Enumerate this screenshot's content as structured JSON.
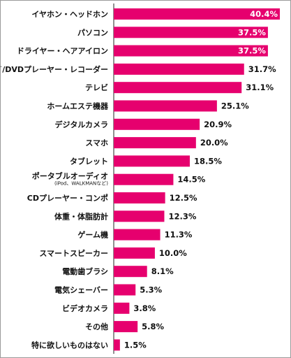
{
  "chart_data": {
    "type": "bar",
    "orientation": "horizontal",
    "title": "",
    "xlabel": "",
    "ylabel": "",
    "xlim": [
      0,
      40.4
    ],
    "grid": false,
    "legend": "none",
    "bar_color": "#e6006e",
    "value_label_inside_color": "#ffffff",
    "value_label_outside_color": "#111111",
    "categories": [
      "イヤホン・ヘッドホン",
      "パソコン",
      "ドライヤー・ヘアアイロン",
      "ブルーレイ/DVDプレーヤー・レコーダー",
      "テレビ",
      "ホームエステ機器",
      "デジタルカメラ",
      "スマホ",
      "タブレット",
      "ポータブルオーディオ",
      "CDプレーヤー・コンポ",
      "体重・体脂肪計",
      "ゲーム機",
      "スマートスピーカー",
      "電動歯ブラシ",
      "電気シェーバー",
      "ビデオカメラ",
      "その他",
      "特に欲しいものはない"
    ],
    "category_sublabels": {
      "9": "(iPod、WALKMANなど)"
    },
    "values": [
      40.4,
      37.5,
      37.5,
      31.7,
      31.1,
      25.1,
      20.9,
      20.0,
      18.5,
      14.5,
      12.5,
      12.3,
      11.3,
      10.0,
      8.1,
      5.3,
      3.8,
      5.8,
      1.5
    ],
    "value_labels": [
      "40.4%",
      "37.5%",
      "37.5%",
      "31.7%",
      "31.1%",
      "25.1%",
      "20.9%",
      "20.0%",
      "18.5%",
      "14.5%",
      "12.5%",
      "12.3%",
      "11.3%",
      "10.0%",
      "8.1%",
      "5.3%",
      "3.8%",
      "5.8%",
      "1.5%"
    ],
    "labels_inside": [
      true,
      true,
      true,
      false,
      false,
      false,
      false,
      false,
      false,
      false,
      false,
      false,
      false,
      false,
      false,
      false,
      false,
      false,
      false
    ]
  }
}
